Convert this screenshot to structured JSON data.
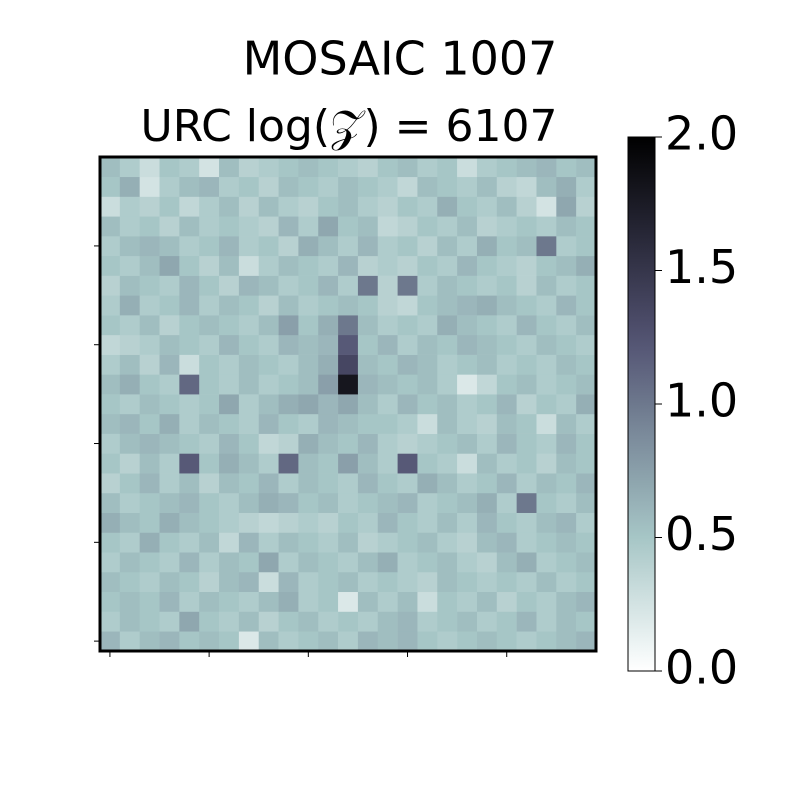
{
  "chart_data": {
    "type": "heatmap",
    "title": "MOSAIC 1007",
    "subtitle": "URC log(𝒵) = 6107",
    "colormap": "bone_r",
    "clim": [
      0,
      2
    ],
    "cticks": [
      {
        "value": 0,
        "label": "0.0"
      },
      0.5,
      {
        "value": 1,
        "label": "1.0"
      },
      1.5,
      {
        "value": 2,
        "label": "2.0"
      }
    ],
    "xlim": [
      -0.5,
      24.5
    ],
    "ylim": [
      -0.5,
      24.5
    ],
    "xticks": [
      0,
      5,
      10,
      15,
      20
    ],
    "yticks": [
      0,
      5,
      10,
      15,
      20
    ],
    "z": [
      [
        0.6,
        0.45,
        0.55,
        0.6,
        0.5,
        0.55,
        0.5,
        0.2,
        0.55,
        0.45,
        0.5,
        0.55,
        0.45,
        0.6,
        0.55,
        0.6,
        0.5,
        0.45,
        0.5,
        0.55,
        0.5,
        0.45,
        0.5,
        0.55,
        0.6
      ],
      [
        0.45,
        0.55,
        0.5,
        0.45,
        0.7,
        0.5,
        0.45,
        0.55,
        0.4,
        0.5,
        0.55,
        0.45,
        0.5,
        0.45,
        0.55,
        0.6,
        0.45,
        0.5,
        0.55,
        0.45,
        0.5,
        0.6,
        0.45,
        0.55,
        0.5
      ],
      [
        0.5,
        0.55,
        0.5,
        0.6,
        0.45,
        0.55,
        0.5,
        0.45,
        0.55,
        0.65,
        0.45,
        0.5,
        0.2,
        0.55,
        0.45,
        0.55,
        0.3,
        0.5,
        0.45,
        0.55,
        0.4,
        0.5,
        0.45,
        0.55,
        0.6
      ],
      [
        0.55,
        0.5,
        0.45,
        0.55,
        0.5,
        0.4,
        0.55,
        0.6,
        0.3,
        0.6,
        0.45,
        0.5,
        0.55,
        0.45,
        0.5,
        0.45,
        0.4,
        0.55,
        0.5,
        0.45,
        0.5,
        0.45,
        0.55,
        0.45,
        0.5
      ],
      [
        0.45,
        0.55,
        0.5,
        0.45,
        0.6,
        0.45,
        0.55,
        0.5,
        0.7,
        0.45,
        0.55,
        0.5,
        0.45,
        0.55,
        0.65,
        0.45,
        0.5,
        0.55,
        0.45,
        0.4,
        0.55,
        0.65,
        0.45,
        0.5,
        0.55
      ],
      [
        0.5,
        0.45,
        0.65,
        0.5,
        0.45,
        0.55,
        0.35,
        0.6,
        0.45,
        0.55,
        0.5,
        0.45,
        0.55,
        0.4,
        0.45,
        0.5,
        0.55,
        0.45,
        0.4,
        0.55,
        0.6,
        0.45,
        0.5,
        0.55,
        0.5
      ],
      [
        0.65,
        0.55,
        0.5,
        0.65,
        0.55,
        0.5,
        0.45,
        0.4,
        0.35,
        0.4,
        0.45,
        0.4,
        0.5,
        0.45,
        0.6,
        0.5,
        0.45,
        0.55,
        0.45,
        0.6,
        0.5,
        0.45,
        0.55,
        0.6,
        0.45
      ],
      [
        0.55,
        0.45,
        0.5,
        0.55,
        0.6,
        0.5,
        0.45,
        0.55,
        0.65,
        0.6,
        0.5,
        0.55,
        0.45,
        0.5,
        0.55,
        0.6,
        0.45,
        0.5,
        0.55,
        0.65,
        0.45,
        1.0,
        0.5,
        0.45,
        0.55
      ],
      [
        0.4,
        0.5,
        0.6,
        0.45,
        0.55,
        0.4,
        0.55,
        0.5,
        0.6,
        0.45,
        0.55,
        0.5,
        0.45,
        0.6,
        0.5,
        0.45,
        0.65,
        0.55,
        0.45,
        0.5,
        0.6,
        0.45,
        0.55,
        0.5,
        0.6
      ],
      [
        0.5,
        0.4,
        0.55,
        0.45,
        1.2,
        0.5,
        0.65,
        0.55,
        0.45,
        1.1,
        0.55,
        0.5,
        0.75,
        0.55,
        0.45,
        1.2,
        0.5,
        0.45,
        0.3,
        0.55,
        0.45,
        0.5,
        0.4,
        0.55,
        0.5
      ],
      [
        0.45,
        0.55,
        0.6,
        0.55,
        0.5,
        0.45,
        0.6,
        0.5,
        0.35,
        0.4,
        0.65,
        0.55,
        0.5,
        0.6,
        0.45,
        0.4,
        0.45,
        0.5,
        0.55,
        0.45,
        0.6,
        0.5,
        0.45,
        0.6,
        0.5
      ],
      [
        0.55,
        0.6,
        0.5,
        0.65,
        0.45,
        0.55,
        0.5,
        0.45,
        0.6,
        0.5,
        0.45,
        0.6,
        0.55,
        0.5,
        0.5,
        0.45,
        0.3,
        0.55,
        0.45,
        0.4,
        0.55,
        0.5,
        0.3,
        0.55,
        0.45
      ],
      [
        0.5,
        0.45,
        0.55,
        0.5,
        0.45,
        0.5,
        0.7,
        0.45,
        0.55,
        0.65,
        0.7,
        0.6,
        0.7,
        0.55,
        0.45,
        0.6,
        0.5,
        0.55,
        0.45,
        0.5,
        0.6,
        0.4,
        0.5,
        0.45,
        0.65
      ],
      [
        0.55,
        0.65,
        0.5,
        0.45,
        1.1,
        0.5,
        0.45,
        0.55,
        0.45,
        0.5,
        0.55,
        0.75,
        1.8,
        0.6,
        0.55,
        0.5,
        0.55,
        0.45,
        0.2,
        0.35,
        0.5,
        0.55,
        0.45,
        0.5,
        0.55
      ],
      [
        0.45,
        0.55,
        0.4,
        0.6,
        0.3,
        0.5,
        0.45,
        0.55,
        0.5,
        0.45,
        0.55,
        0.65,
        1.35,
        0.55,
        0.5,
        0.6,
        0.55,
        0.45,
        0.5,
        0.55,
        0.45,
        0.5,
        0.45,
        0.55,
        0.5
      ],
      [
        0.35,
        0.4,
        0.45,
        0.55,
        0.5,
        0.45,
        0.6,
        0.5,
        0.45,
        0.6,
        0.55,
        0.6,
        1.2,
        0.5,
        0.6,
        0.45,
        0.55,
        0.5,
        0.6,
        0.55,
        0.5,
        0.45,
        0.55,
        0.5,
        0.45
      ],
      [
        0.5,
        0.45,
        0.55,
        0.4,
        0.5,
        0.55,
        0.5,
        0.45,
        0.55,
        0.75,
        0.5,
        0.65,
        1.0,
        0.55,
        0.45,
        0.5,
        0.45,
        0.65,
        0.55,
        0.5,
        0.45,
        0.6,
        0.5,
        0.45,
        0.55
      ],
      [
        0.45,
        0.65,
        0.45,
        0.5,
        0.6,
        0.45,
        0.55,
        0.5,
        0.4,
        0.55,
        0.45,
        0.5,
        0.55,
        0.5,
        0.4,
        0.35,
        0.5,
        0.55,
        0.6,
        0.65,
        0.55,
        0.5,
        0.45,
        0.6,
        0.5
      ],
      [
        0.4,
        0.55,
        0.5,
        0.45,
        0.6,
        0.5,
        0.4,
        0.6,
        0.55,
        0.45,
        0.5,
        0.6,
        0.45,
        1.0,
        0.4,
        1.0,
        0.45,
        0.55,
        0.5,
        0.45,
        0.5,
        0.4,
        0.55,
        0.45,
        0.5
      ],
      [
        0.5,
        0.45,
        0.55,
        0.7,
        0.5,
        0.4,
        0.55,
        0.3,
        0.45,
        0.55,
        0.5,
        0.45,
        0.6,
        0.4,
        0.45,
        0.4,
        0.5,
        0.45,
        0.6,
        0.5,
        0.45,
        0.4,
        0.5,
        0.55,
        0.65
      ],
      [
        0.45,
        0.55,
        0.6,
        0.55,
        0.45,
        0.5,
        0.6,
        0.45,
        0.5,
        0.4,
        0.65,
        0.55,
        0.45,
        0.6,
        0.45,
        0.5,
        0.4,
        0.55,
        0.45,
        0.65,
        0.5,
        0.55,
        1.0,
        0.45,
        0.5
      ],
      [
        0.55,
        0.45,
        0.5,
        0.4,
        0.55,
        0.45,
        0.5,
        0.45,
        0.4,
        0.6,
        0.45,
        0.7,
        0.5,
        0.55,
        0.35,
        0.4,
        0.5,
        0.45,
        0.55,
        0.4,
        0.45,
        0.5,
        0.45,
        0.55,
        0.5
      ],
      [
        0.3,
        0.45,
        0.4,
        0.5,
        0.35,
        0.45,
        0.55,
        0.4,
        0.55,
        0.45,
        0.4,
        0.5,
        0.55,
        0.45,
        0.4,
        0.5,
        0.45,
        0.65,
        0.5,
        0.45,
        0.55,
        0.4,
        0.25,
        0.7,
        0.4
      ],
      [
        0.5,
        0.65,
        0.25,
        0.45,
        0.55,
        0.6,
        0.45,
        0.5,
        0.4,
        0.55,
        0.5,
        0.45,
        0.55,
        0.5,
        0.45,
        0.35,
        0.55,
        0.5,
        0.45,
        0.55,
        0.4,
        0.35,
        0.55,
        0.65,
        0.45
      ],
      [
        0.55,
        0.45,
        0.3,
        0.5,
        0.45,
        0.25,
        0.55,
        0.4,
        0.45,
        0.5,
        0.55,
        0.5,
        0.45,
        0.4,
        0.5,
        0.55,
        0.45,
        0.5,
        0.3,
        0.45,
        0.5,
        0.55,
        0.6,
        0.5,
        0.55
      ]
    ]
  }
}
